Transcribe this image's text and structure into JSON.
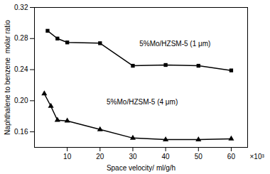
{
  "chart_data": {
    "type": "line",
    "xlabel": "Space velocity/ ml/g/h",
    "ylabel": "Naphthalene to benzene  molar ratio",
    "series": [
      {
        "x": [
          4,
          7,
          10,
          20,
          30,
          40,
          50,
          60
        ],
        "values": [
          0.29,
          0.28,
          0.275,
          0.274,
          0.245,
          0.246,
          0.245,
          0.239
        ],
        "marker": "square"
      },
      {
        "x": [
          3,
          5,
          7,
          10,
          20,
          30,
          40,
          50,
          60
        ],
        "values": [
          0.209,
          0.193,
          0.175,
          0.174,
          0.163,
          0.152,
          0.15,
          0.15,
          0.151
        ],
        "marker": "triangle"
      }
    ],
    "annotations": [
      {
        "text": "5%Mo/HZSM-5 (1 μm)",
        "x": 32,
        "y": 0.27
      },
      {
        "text": "5%Mo/HZSM-5 (4 μm)",
        "x": 22,
        "y": 0.195
      },
      {
        "text": "×10³"
      }
    ],
    "xlim": [
      0,
      65
    ],
    "ylim": [
      0.14,
      0.32
    ],
    "xticks": [
      10,
      20,
      30,
      40,
      50,
      60
    ],
    "yticks": [
      0.16,
      {
        "value": 0.2,
        "label": "0.20"
      },
      0.24,
      0.28,
      0.32
    ],
    "grid": false
  }
}
